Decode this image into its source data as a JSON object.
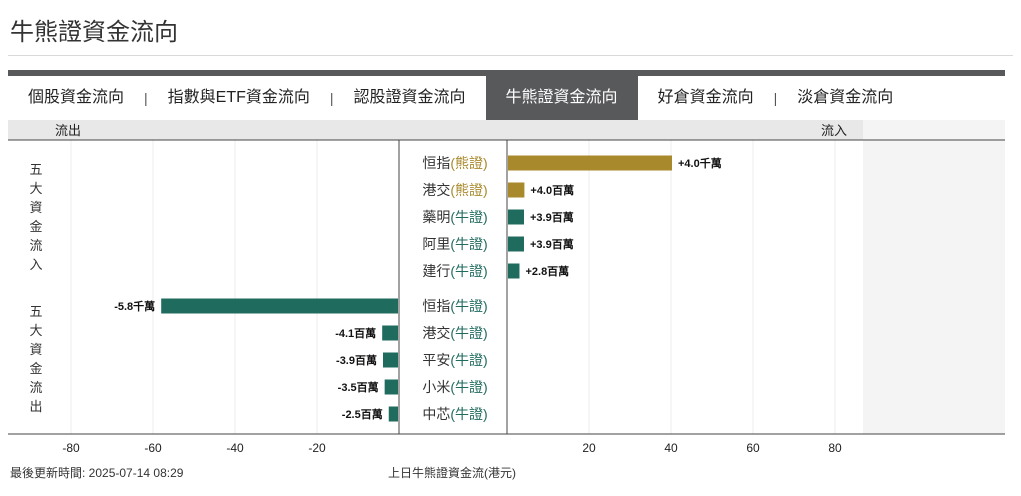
{
  "page": {
    "title": "牛熊證資金流向",
    "footer_updated_label": "最後更新時間: ",
    "footer_updated_value": "2025-07-14 08:29",
    "footer_note": "上日牛熊證資金流(港元)"
  },
  "tabs": [
    {
      "label": "個股資金流向",
      "active": false
    },
    {
      "label": "指數與ETF資金流向",
      "active": false
    },
    {
      "label": "認股證資金流向",
      "active": false
    },
    {
      "label": "牛熊證資金流向",
      "active": true
    },
    {
      "label": "好倉資金流向",
      "active": false
    },
    {
      "label": "淡倉資金流向",
      "active": false
    }
  ],
  "tab_separator": "|",
  "chart_data": {
    "type": "bar",
    "orientation": "horizontal",
    "outflow_label": "流出",
    "inflow_label": "流入",
    "group_labels": [
      "五大資金流入",
      "五大資金流出"
    ],
    "x_ticks": [
      "-80",
      "-60",
      "-40",
      "-20",
      "20",
      "40",
      "60",
      "80"
    ],
    "xlim": [
      -80,
      80
    ],
    "grid": true,
    "colors": {
      "bear": "#a8892b",
      "bull": "#1f6b5e",
      "label_bear": "#a8892b",
      "label_bull": "#1f6b5e"
    },
    "inflow": [
      {
        "name": "恒指",
        "type": "(熊證)",
        "kind": "bear",
        "value": 40,
        "label": "+4.0千萬"
      },
      {
        "name": "港交",
        "type": "(熊證)",
        "kind": "bear",
        "value": 4.0,
        "label": "+4.0百萬"
      },
      {
        "name": "藥明",
        "type": "(牛證)",
        "kind": "bull",
        "value": 3.9,
        "label": "+3.9百萬"
      },
      {
        "name": "阿里",
        "type": "(牛證)",
        "kind": "bull",
        "value": 3.9,
        "label": "+3.9百萬"
      },
      {
        "name": "建行",
        "type": "(牛證)",
        "kind": "bull",
        "value": 2.8,
        "label": "+2.8百萬"
      }
    ],
    "outflow": [
      {
        "name": "恒指",
        "type": "(牛證)",
        "kind": "bull",
        "value": -58,
        "label": "-5.8千萬"
      },
      {
        "name": "港交",
        "type": "(牛證)",
        "kind": "bull",
        "value": -4.1,
        "label": "-4.1百萬"
      },
      {
        "name": "平安",
        "type": "(牛證)",
        "kind": "bull",
        "value": -3.9,
        "label": "-3.9百萬"
      },
      {
        "name": "小米",
        "type": "(牛證)",
        "kind": "bull",
        "value": -3.5,
        "label": "-3.5百萬"
      },
      {
        "name": "中芯",
        "type": "(牛證)",
        "kind": "bull",
        "value": -2.5,
        "label": "-2.5百萬"
      }
    ]
  }
}
